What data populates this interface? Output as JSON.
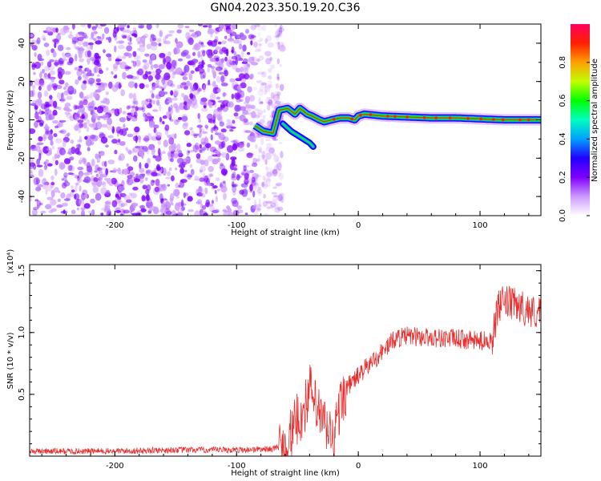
{
  "title": "GN04.2023.350.19.20.C36",
  "colors": {
    "snr_line": "#e83030",
    "colormap": [
      "#ffffff",
      "#cc99ff",
      "#8000ff",
      "#2000ff",
      "#00a0ff",
      "#00ffc0",
      "#00ff00",
      "#c0ff00",
      "#ffa000",
      "#ff2000",
      "#ff0060"
    ]
  },
  "chart_data": [
    {
      "type": "heatmap",
      "xlabel": "Height of straight line (km)",
      "ylabel": "Frequency (Hz)",
      "xlim": [
        -270,
        150
      ],
      "ylim": [
        -50,
        50
      ],
      "xticks": [
        -200,
        -100,
        0,
        100
      ],
      "xtick_labels": [
        "-200",
        "-100",
        "0",
        "100"
      ],
      "yticks": [
        -40,
        -20,
        0,
        20,
        40
      ],
      "ytick_labels": [
        "-40",
        "-20",
        "0",
        "20",
        "40"
      ],
      "noise_region_x": [
        -270,
        -70
      ],
      "ridge": {
        "x": [
          -85,
          -78,
          -70,
          -65,
          -58,
          -52,
          -48,
          -42,
          -38,
          -32,
          -28,
          -22,
          -15,
          -8,
          -3,
          0,
          5,
          20,
          40,
          60,
          80,
          100,
          120,
          150
        ],
        "freq": [
          -3,
          -6,
          -7,
          5,
          6,
          3,
          6,
          3,
          2,
          0,
          -1,
          0,
          1,
          1,
          0,
          2,
          3,
          2,
          1.5,
          1,
          1,
          0.5,
          0,
          0
        ]
      },
      "lower_branch": {
        "x": [
          -62,
          -55,
          -50,
          -45,
          -40,
          -37
        ],
        "freq": [
          -2,
          -6,
          -8,
          -10,
          -12,
          -14
        ]
      },
      "colorbar": {
        "label": "Normalized spectral amplitude",
        "range": [
          0.0,
          1.0
        ],
        "ticks": [
          0.0,
          0.2,
          0.4,
          0.6,
          0.8
        ],
        "tick_labels": [
          "0.0",
          "0.2",
          "0.4",
          "0.6",
          "0.8"
        ]
      }
    },
    {
      "type": "line",
      "xlabel": "Height of straight line (km)",
      "ylabel": "SNR (10 * v/v)",
      "scale_label": "(x10⁴)",
      "xlim": [
        -270,
        150
      ],
      "ylim": [
        0,
        1.55
      ],
      "xticks": [
        -200,
        -100,
        0,
        100
      ],
      "xtick_labels": [
        "-200",
        "-100",
        "0",
        "100"
      ],
      "yticks": [
        0.5,
        1.0,
        1.5
      ],
      "ytick_labels": [
        "0.5",
        "1.0",
        "1.5"
      ],
      "series": [
        {
          "x": [
            -270,
            -200,
            -150,
            -100,
            -70,
            -60,
            -55,
            -50,
            -45,
            -40,
            -35,
            -30,
            -25,
            -20,
            -15,
            -10,
            -5,
            0,
            10,
            20,
            30,
            40,
            60,
            80,
            100,
            110,
            115,
            120,
            130,
            140,
            150
          ],
          "values": [
            0.04,
            0.04,
            0.05,
            0.05,
            0.06,
            0.1,
            0.18,
            0.3,
            0.35,
            0.55,
            0.4,
            0.3,
            0.2,
            0.15,
            0.4,
            0.55,
            0.6,
            0.65,
            0.75,
            0.85,
            0.95,
            0.97,
            0.96,
            0.95,
            0.93,
            0.95,
            1.2,
            1.25,
            1.22,
            1.18,
            1.15
          ]
        }
      ]
    }
  ]
}
